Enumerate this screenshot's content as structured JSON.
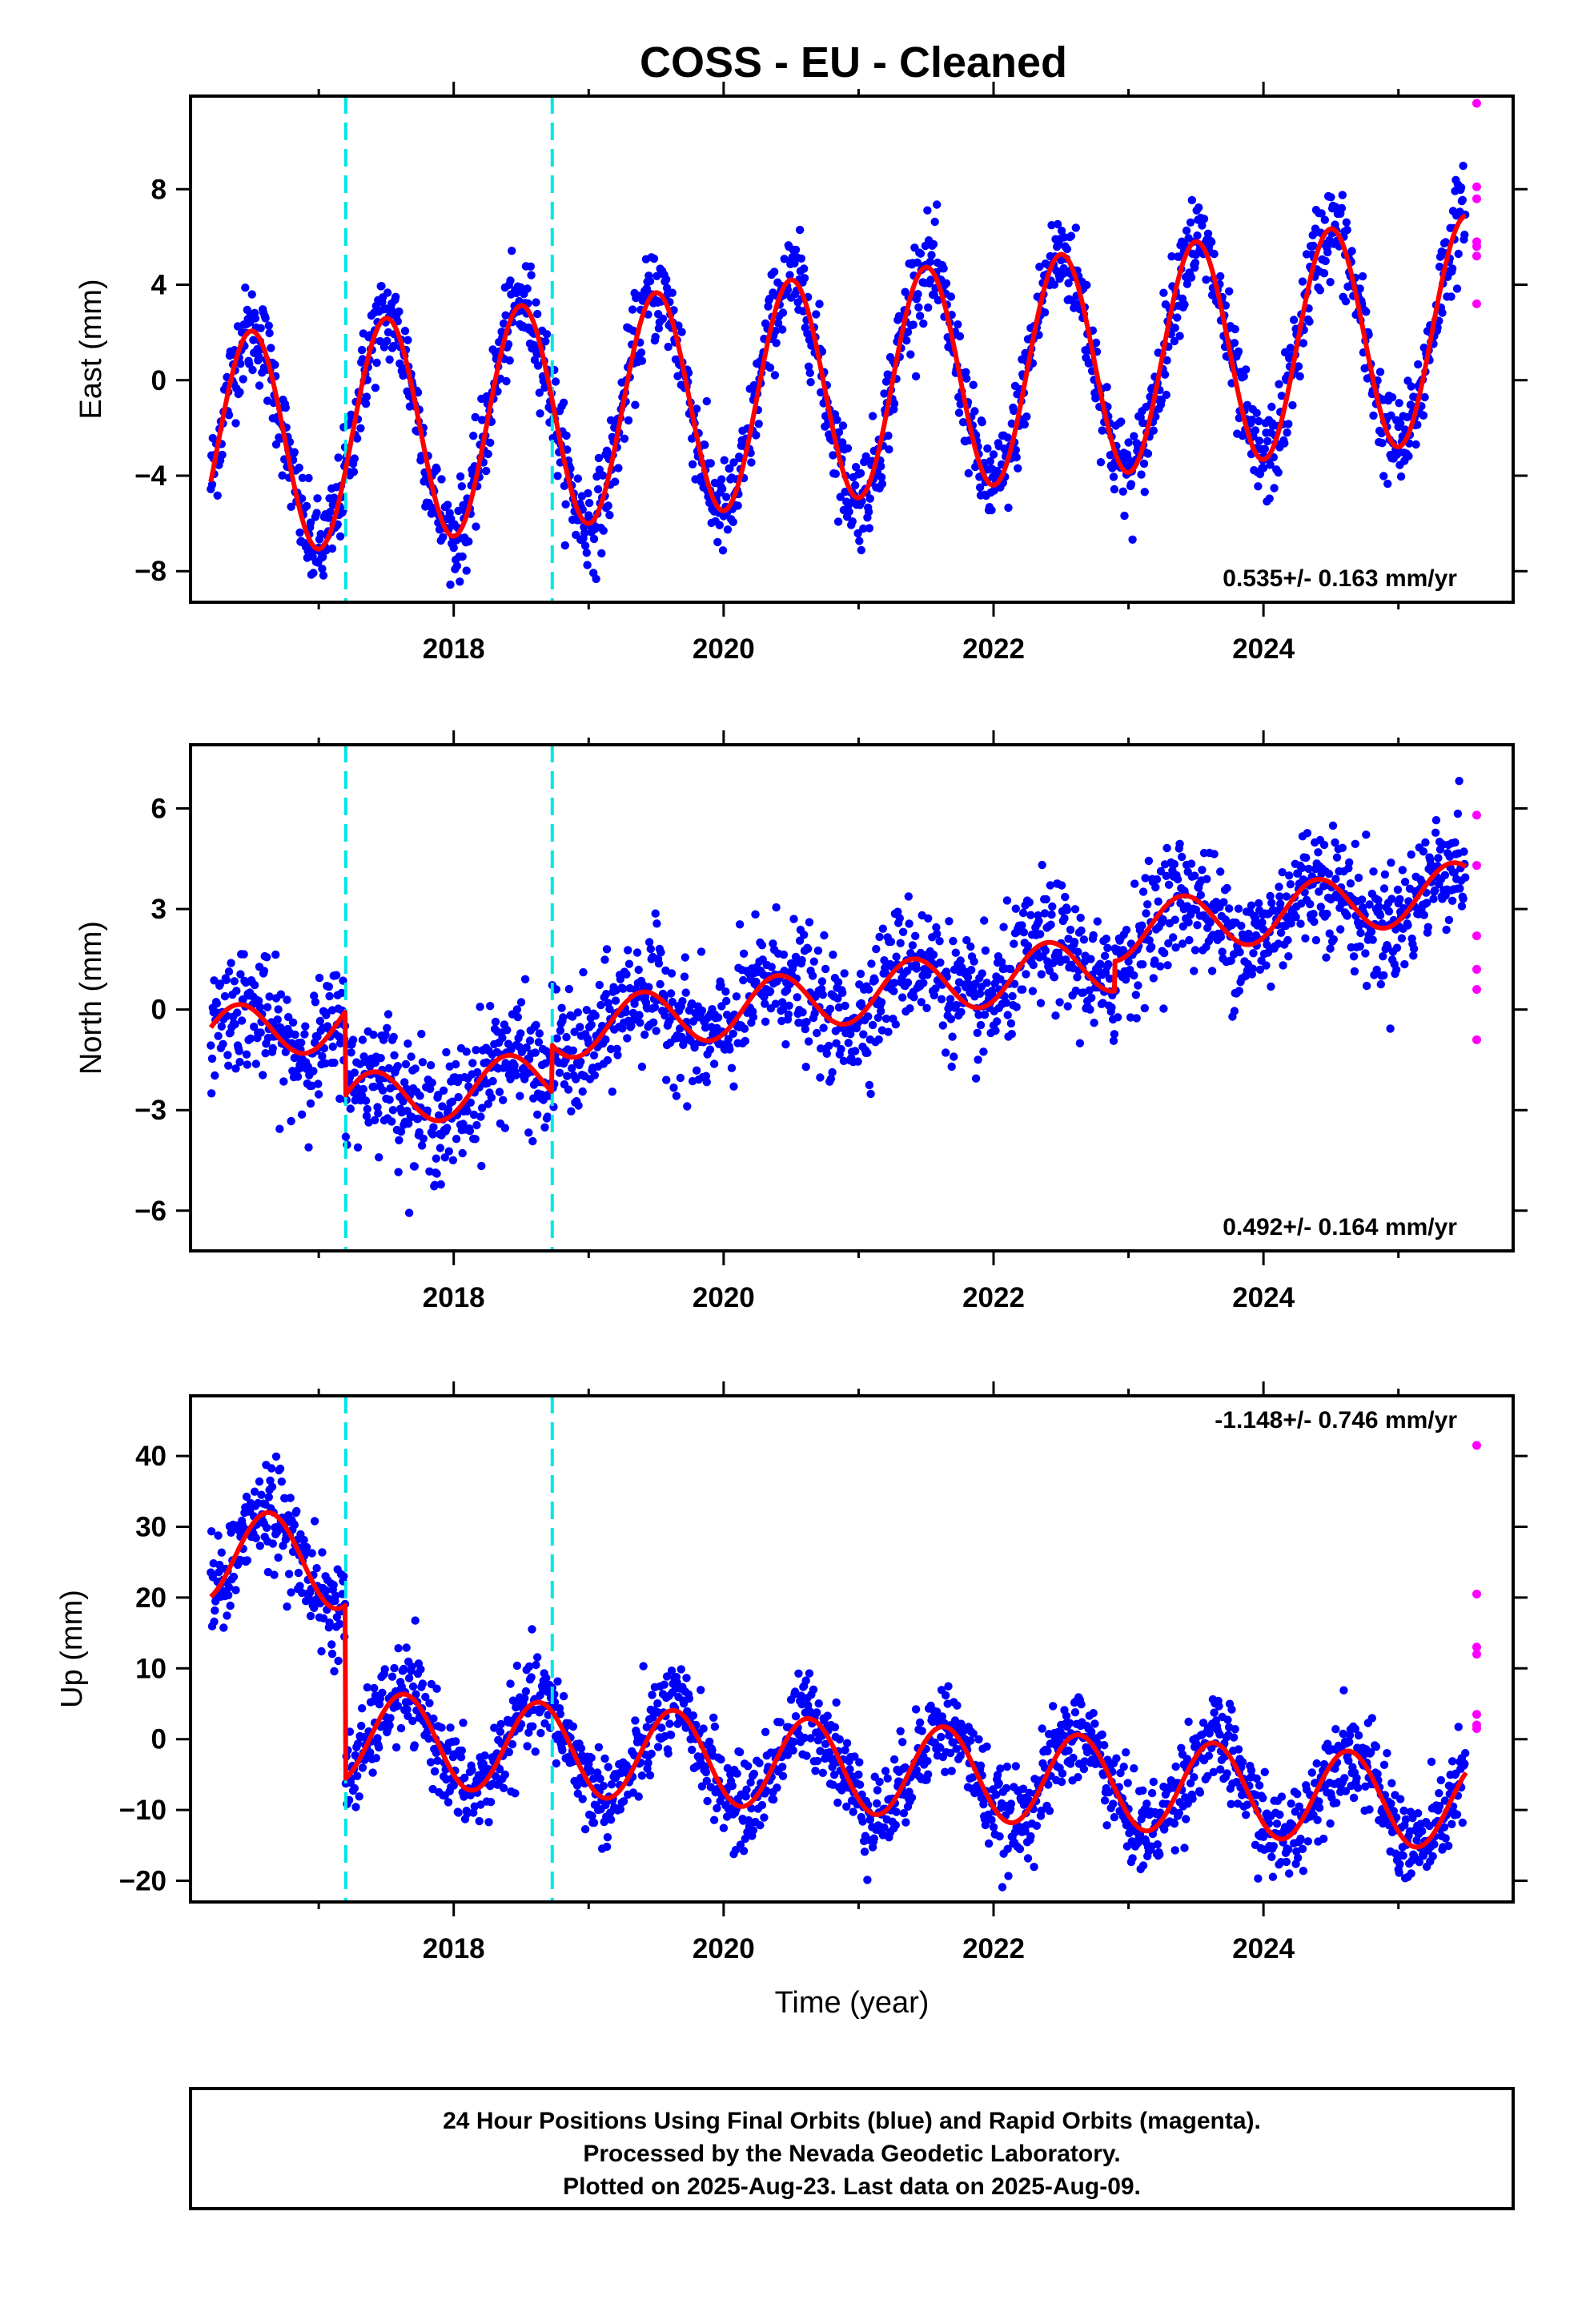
{
  "title": "COSS  - EU - Cleaned",
  "colors": {
    "final_orbits": "#0000ff",
    "rapid_orbits": "#ff00ff",
    "model": "#ff0000",
    "breaks": "#00e5e5"
  },
  "chart_data": [
    {
      "type": "scatter",
      "component": "east",
      "ylabel": "East (mm)",
      "xlabel": "",
      "xlim": [
        2016.05,
        2025.85
      ],
      "ylim": [
        -9.3,
        11.9
      ],
      "x_ticks": [
        2018,
        2020,
        2022,
        2024
      ],
      "x_tick_labels": [
        "2018",
        "2020",
        "2022",
        "2024"
      ],
      "y_ticks": [
        -8,
        -4,
        0,
        4,
        8
      ],
      "y_tick_labels": [
        "−8",
        "−4",
        "0",
        "4",
        "8"
      ],
      "rate_label": "0.535+/- 0.163 mm/yr",
      "rate_position": "bottom-right",
      "breaks": [
        2017.2,
        2018.73
      ],
      "model": {
        "offset": -2.8,
        "trend": 0.535,
        "amp": 4.7,
        "peak_phase": 0.5,
        "offsets": []
      },
      "series": [
        {
          "name": "Final Orbits",
          "x_range": [
            2016.2,
            2025.5
          ],
          "scatter": 1.0
        },
        {
          "name": "Rapid Orbits",
          "x": [
            2025.58,
            2025.58,
            2025.58,
            2025.58,
            2025.58,
            2025.58,
            2025.58
          ],
          "y": [
            11.6,
            8.1,
            7.6,
            5.8,
            5.6,
            5.2,
            3.2
          ]
        }
      ]
    },
    {
      "type": "scatter",
      "component": "north",
      "ylabel": "North (mm)",
      "xlabel": "",
      "xlim": [
        2016.05,
        2025.85
      ],
      "ylim": [
        -7.2,
        7.9
      ],
      "x_ticks": [
        2018,
        2020,
        2022,
        2024
      ],
      "x_tick_labels": [
        "2018",
        "2020",
        "2022",
        "2024"
      ],
      "y_ticks": [
        -6,
        -3,
        0,
        3,
        6
      ],
      "y_tick_labels": [
        "−6",
        "−3",
        "0",
        "3",
        "6"
      ],
      "rate_label": "0.492+/- 0.164 mm/yr",
      "rate_position": "bottom-right",
      "breaks": [
        2017.2,
        2018.73
      ],
      "model": {
        "offset": -0.8,
        "trend": 0.492,
        "amp": 0.85,
        "peak_phase": 0.4,
        "offsets": [
          [
            2017.2,
            -2.5
          ],
          [
            2018.73,
            1.4
          ],
          [
            2022.9,
            0.9
          ]
        ]
      },
      "series": [
        {
          "name": "Final Orbits",
          "x_range": [
            2016.2,
            2025.5
          ],
          "scatter": 0.9
        },
        {
          "name": "Rapid Orbits",
          "x": [
            2025.58,
            2025.58,
            2025.58,
            2025.58,
            2025.58,
            2025.58
          ],
          "y": [
            5.8,
            4.3,
            2.2,
            1.2,
            0.6,
            -0.9
          ]
        }
      ]
    },
    {
      "type": "scatter",
      "component": "up",
      "ylabel": "Up (mm)",
      "xlabel": "Time (year)",
      "xlim": [
        2016.05,
        2025.85
      ],
      "ylim": [
        -23,
        48.5
      ],
      "x_ticks": [
        2018,
        2020,
        2022,
        2024
      ],
      "x_tick_labels": [
        "2018",
        "2020",
        "2022",
        "2024"
      ],
      "y_ticks": [
        -20,
        -10,
        0,
        10,
        20,
        30,
        40
      ],
      "y_tick_labels": [
        "−20",
        "−10",
        "0",
        "10",
        "20",
        "30",
        "40"
      ],
      "rate_label": "-1.148+/- 0.746 mm/yr",
      "rate_position": "top-right",
      "breaks": [
        2017.2,
        2018.73
      ],
      "model": {
        "offset": 26.0,
        "trend": -1.148,
        "amp": 6.5,
        "peak_phase": 0.63,
        "offsets": [
          [
            2017.2,
            -24.5
          ]
        ]
      },
      "series": [
        {
          "name": "Final Orbits",
          "x_range": [
            2016.2,
            2025.5
          ],
          "scatter": 3.2
        },
        {
          "name": "Rapid Orbits",
          "x": [
            2025.58,
            2025.58,
            2025.58,
            2025.58,
            2025.58,
            2025.58,
            2025.58
          ],
          "y": [
            41.5,
            20.5,
            13.0,
            12.0,
            3.5,
            2.0,
            1.5
          ]
        }
      ]
    }
  ],
  "footer": {
    "line1": "24 Hour Positions Using Final Orbits (blue) and Rapid Orbits (magenta).",
    "line2": "Processed by the Nevada Geodetic Laboratory.",
    "line3": "Plotted on 2025-Aug-23. Last data on 2025-Aug-09."
  }
}
